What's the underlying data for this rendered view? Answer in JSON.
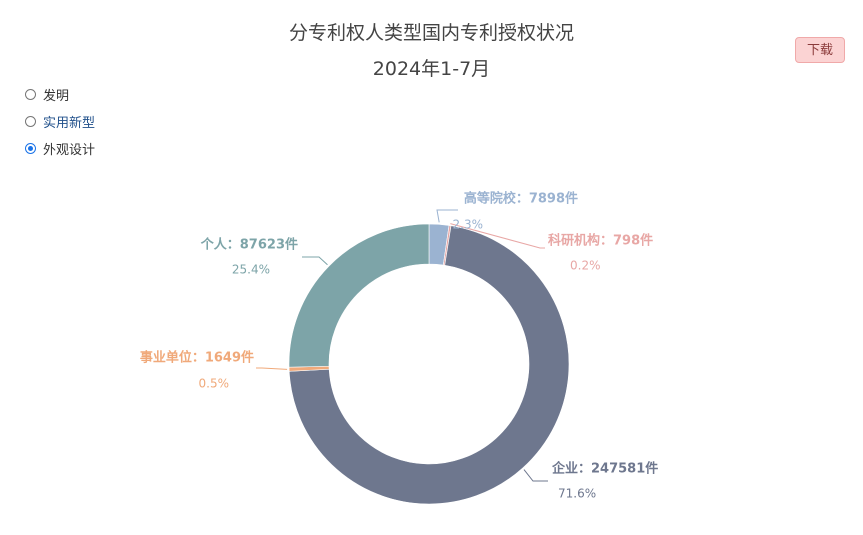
{
  "title_line1": "分专利权人类型国内专利授权状况",
  "title_line2": "2024年1-7月",
  "download_label": "下载",
  "radios": [
    {
      "label": "发明",
      "checked": false
    },
    {
      "label": "实用新型",
      "checked": false
    },
    {
      "label": "外观设计",
      "checked": true
    }
  ],
  "chart_data": {
    "type": "pie",
    "subtype": "donut",
    "unit": "件",
    "slices": [
      {
        "name": "高等院校",
        "value": 7898,
        "value_text": "7898件",
        "percent": "2.3%",
        "color": "#9bb3d1"
      },
      {
        "name": "科研机构",
        "value": 798,
        "value_text": "798件",
        "percent": "0.2%",
        "color": "#e8a7a5"
      },
      {
        "name": "企业",
        "value": 247581,
        "value_text": "247581件",
        "percent": "71.6%",
        "color": "#6e778e"
      },
      {
        "name": "事业单位",
        "value": 1649,
        "value_text": "1649件",
        "percent": "0.5%",
        "color": "#f0a97a"
      },
      {
        "name": "个人",
        "value": 87623,
        "value_text": "87623件",
        "percent": "25.4%",
        "color": "#7da4a8"
      }
    ]
  }
}
